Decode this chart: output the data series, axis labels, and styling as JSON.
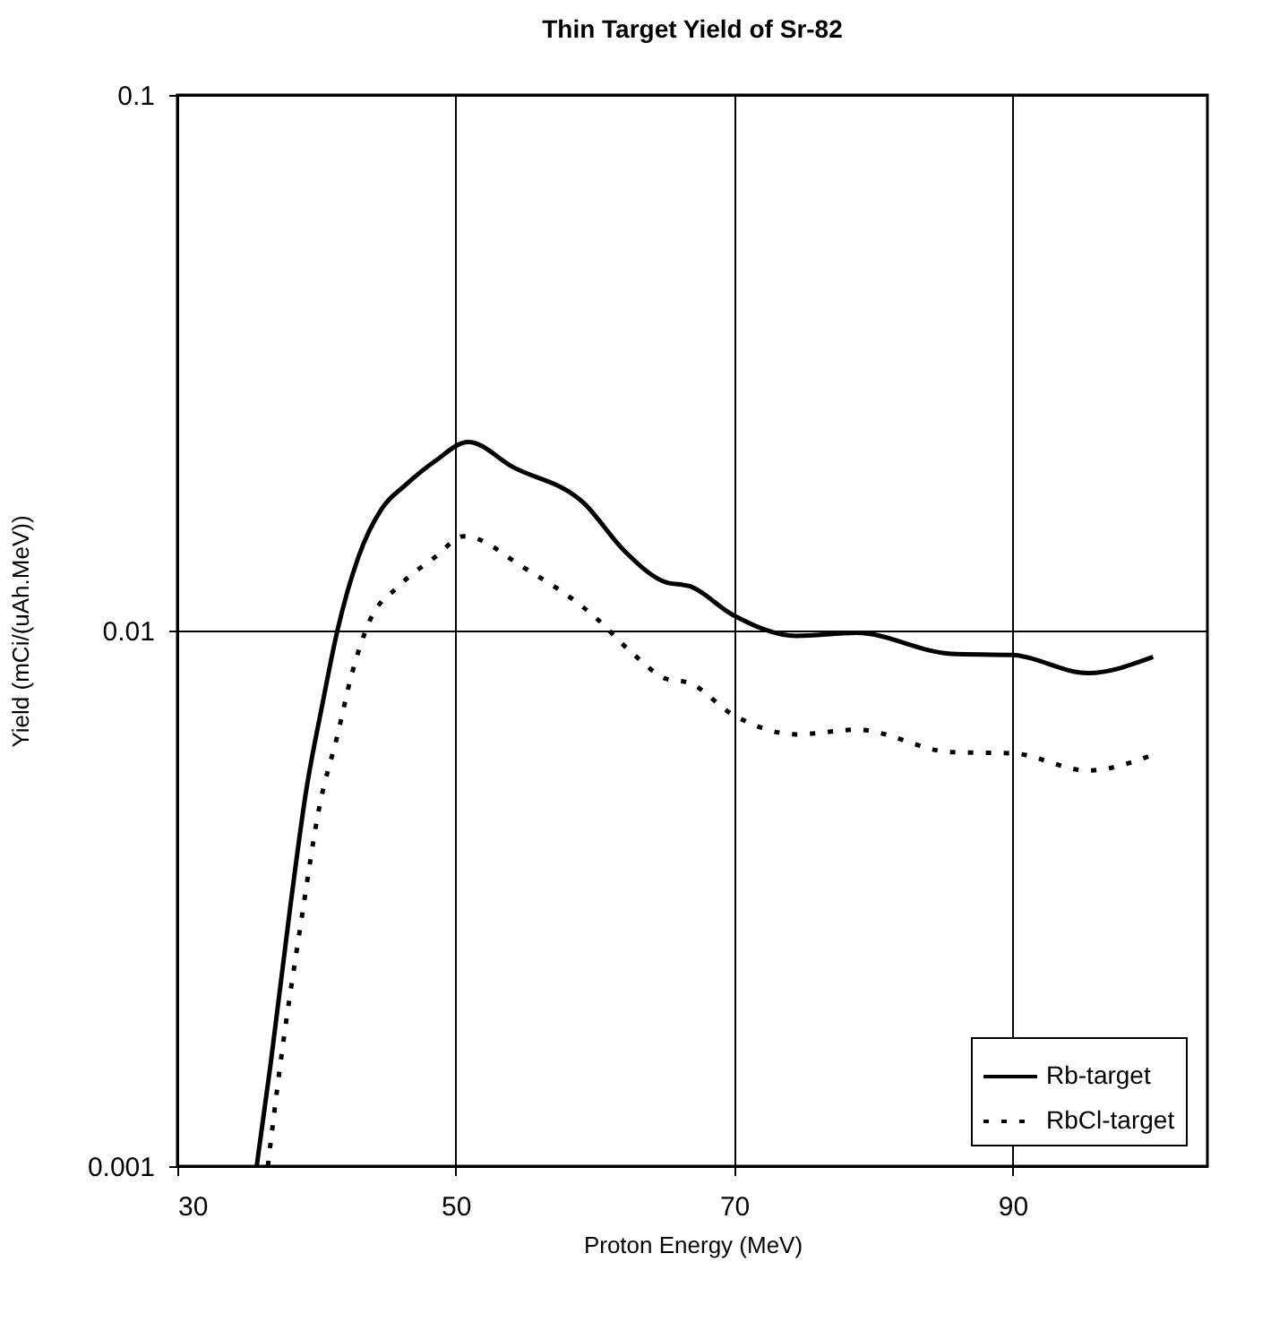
{
  "chart_data": {
    "type": "line",
    "title": "Thin Target Yield of Sr-82",
    "xlabel": "Proton Energy (MeV)",
    "ylabel": "Yield (mCi/(uAh.MeV))",
    "log": "y",
    "grid": true,
    "legend": "bottom right",
    "marker": "none",
    "xlim": [
      30,
      104
    ],
    "xticks": [
      30,
      50,
      70,
      90
    ],
    "ylim": [
      0.001,
      0.1
    ],
    "yticks": [
      0.001,
      0.01,
      0.1
    ],
    "series": [
      {
        "name": "Rb-target",
        "color": "#000000",
        "line_style": "solid",
        "x": [
          35.7,
          36.7,
          38.1,
          39.27,
          40.4,
          41.5,
          43.0,
          44.7,
          46.4,
          48.5,
          50.9,
          54.1,
          59.2,
          62.1,
          65.1,
          66.8,
          69.9,
          74.5,
          78.8,
          85.6,
          90.0,
          95.4,
          100.1
        ],
        "values": [
          0.001,
          0.00155,
          0.00303,
          0.00505,
          0.00724,
          0.01,
          0.0137,
          0.0169,
          0.0187,
          0.0207,
          0.0225,
          0.0202,
          0.0173,
          0.0141,
          0.0123,
          0.0121,
          0.0107,
          0.00977,
          0.0099,
          0.00905,
          0.009,
          0.00833,
          0.00893
        ]
      },
      {
        "name": "RbCl-target",
        "color": "#000000",
        "line_style": "dotted",
        "x": [
          36.5,
          37.4,
          38.9,
          40.2,
          41.5,
          42.5,
          43.8,
          45.9,
          48.5,
          50.6,
          54.9,
          60.0,
          62.6,
          65.1,
          66.8,
          69.9,
          74.5,
          78.8,
          85.6,
          90.0,
          95.4,
          100.1
        ],
        "values": [
          0.001,
          0.00155,
          0.00287,
          0.00468,
          0.00637,
          0.00823,
          0.0104,
          0.0121,
          0.0137,
          0.015,
          0.0131,
          0.0106,
          0.00912,
          0.00813,
          0.00798,
          0.00697,
          0.0064,
          0.00653,
          0.00593,
          0.0059,
          0.00548,
          0.00586
        ]
      }
    ]
  }
}
